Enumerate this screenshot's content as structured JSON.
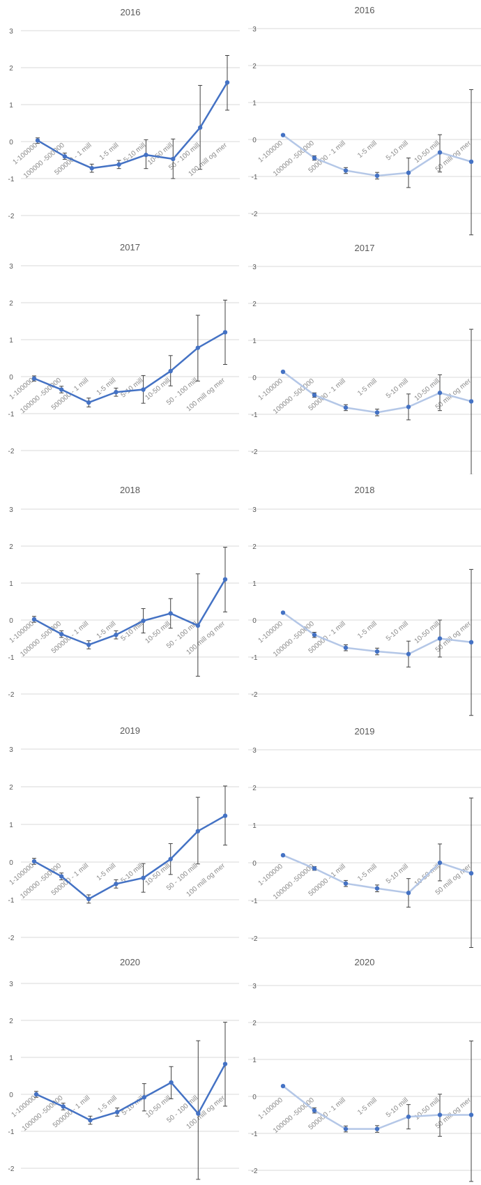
{
  "colors": {
    "dark_series": "#4472c4",
    "light_series": "#b4c7e7",
    "error_bar": "#404040",
    "grid": "#d9d9d9",
    "text": "#595959"
  },
  "chart_data": [
    {
      "type": "line",
      "title": "2016",
      "style": "dark",
      "ylim": [
        -2,
        3
      ],
      "yticks": [
        3,
        2,
        1,
        0,
        -1,
        -2
      ],
      "grid": true,
      "categories": [
        "1-100000",
        "100000 -500000",
        "500000 - 1 mill",
        "1-5 mill",
        "5-10 mill",
        "10-50 mill",
        "50 - 100 mill",
        "100 mill og mer"
      ],
      "values": [
        0.03,
        -0.4,
        -0.72,
        -0.62,
        -0.36,
        -0.47,
        0.38,
        1.6
      ],
      "err_low": [
        -0.05,
        -0.48,
        -0.83,
        -0.73,
        -0.73,
        -1.0,
        -0.75,
        0.85
      ],
      "err_high": [
        0.1,
        -0.31,
        -0.61,
        -0.51,
        0.05,
        0.07,
        1.52,
        2.33
      ]
    },
    {
      "type": "line",
      "title": "2016",
      "style": "light",
      "ylim": [
        -2.5,
        3
      ],
      "yticks": [
        3,
        2,
        1,
        0,
        -1,
        -2
      ],
      "grid": true,
      "categories": [
        "1-100000",
        "100000 -500000",
        "500000 - 1 mill",
        "1-5 mill",
        "5-10 mill",
        "10-50 mill",
        "50 mill og mer"
      ],
      "values": [
        0.12,
        -0.5,
        -0.84,
        -0.98,
        -0.9,
        -0.35,
        -0.6
      ],
      "err_low": [
        null,
        -0.56,
        -0.92,
        -1.07,
        -1.3,
        -0.88,
        -2.58
      ],
      "err_high": [
        null,
        -0.44,
        -0.76,
        -0.89,
        -0.5,
        0.13,
        1.35
      ]
    },
    {
      "type": "line",
      "title": "2017",
      "style": "dark",
      "ylim": [
        -2,
        3
      ],
      "yticks": [
        3,
        2,
        1,
        0,
        -1,
        -2
      ],
      "grid": true,
      "categories": [
        "1-100000",
        "100000 -500000",
        "500000 - 1 mill",
        "1-5 mill",
        "5-10 mill",
        "10-50 mill",
        "50 - 100 mill",
        "100 mill og mer"
      ],
      "values": [
        -0.05,
        -0.35,
        -0.7,
        -0.42,
        -0.35,
        0.15,
        0.78,
        1.2
      ],
      "err_low": [
        -0.12,
        -0.44,
        -0.82,
        -0.53,
        -0.72,
        -0.25,
        -0.12,
        0.33
      ],
      "err_high": [
        0.02,
        -0.26,
        -0.58,
        -0.31,
        0.03,
        0.57,
        1.66,
        2.07
      ]
    },
    {
      "type": "line",
      "title": "2017",
      "style": "light",
      "ylim": [
        -2.5,
        3
      ],
      "yticks": [
        3,
        2,
        1,
        0,
        -1,
        -2
      ],
      "grid": true,
      "categories": [
        "1-100000",
        "100000 -500000",
        "500000 - 1 mill",
        "1-5 mill",
        "5-10 mill",
        "10-50 mill",
        "50 mill og mer"
      ],
      "values": [
        0.15,
        -0.48,
        -0.82,
        -0.95,
        -0.8,
        -0.42,
        -0.65
      ],
      "err_low": [
        null,
        -0.54,
        -0.9,
        -1.04,
        -1.15,
        -0.9,
        -2.63
      ],
      "err_high": [
        null,
        -0.42,
        -0.74,
        -0.86,
        -0.45,
        0.07,
        1.3
      ]
    },
    {
      "type": "line",
      "title": "2018",
      "style": "dark",
      "ylim": [
        -2,
        3
      ],
      "yticks": [
        3,
        2,
        1,
        0,
        -1,
        -2
      ],
      "grid": true,
      "categories": [
        "1-100000",
        "100000 -500000",
        "500000 - 1 mill",
        "1-5 mill",
        "5-10 mill",
        "10-50 mill",
        "50 - 100 mill",
        "100 mill og mer"
      ],
      "values": [
        0.02,
        -0.38,
        -0.67,
        -0.4,
        -0.02,
        0.18,
        -0.15,
        1.1
      ],
      "err_low": [
        -0.06,
        -0.47,
        -0.78,
        -0.51,
        -0.35,
        -0.22,
        -1.52,
        0.22
      ],
      "err_high": [
        0.1,
        -0.29,
        -0.56,
        -0.29,
        0.31,
        0.58,
        1.25,
        1.97
      ]
    },
    {
      "type": "line",
      "title": "2018",
      "style": "light",
      "ylim": [
        -2.5,
        3
      ],
      "yticks": [
        3,
        2,
        1,
        0,
        -1,
        -2
      ],
      "grid": true,
      "categories": [
        "1-100000",
        "100000 -500000",
        "500000 - 1 mill",
        "1-5 mill",
        "5-10 mill",
        "10-50 mill",
        "50 mill og mer"
      ],
      "values": [
        0.2,
        -0.4,
        -0.75,
        -0.85,
        -0.92,
        -0.5,
        -0.6
      ],
      "err_low": [
        null,
        -0.47,
        -0.83,
        -0.94,
        -1.27,
        -1.0,
        -2.58
      ],
      "err_high": [
        null,
        -0.33,
        -0.67,
        -0.76,
        -0.57,
        0.0,
        1.37
      ]
    },
    {
      "type": "line",
      "title": "2019",
      "style": "dark",
      "ylim": [
        -2,
        3
      ],
      "yticks": [
        3,
        2,
        1,
        0,
        -1,
        -2
      ],
      "grid": true,
      "categories": [
        "1-100000",
        "100000 -500000",
        "500000 - 1 mill",
        "1-5 mill",
        "5-10 mill",
        "10-50 mill",
        "50 - 100 mill",
        "100 mill og mer"
      ],
      "values": [
        0.02,
        -0.38,
        -0.98,
        -0.58,
        -0.42,
        0.08,
        0.82,
        1.23
      ],
      "err_low": [
        -0.06,
        -0.47,
        -1.09,
        -0.69,
        -0.8,
        -0.33,
        -0.05,
        0.45
      ],
      "err_high": [
        0.1,
        -0.29,
        -0.87,
        -0.47,
        -0.04,
        0.49,
        1.72,
        2.02
      ]
    },
    {
      "type": "line",
      "title": "2019",
      "style": "light",
      "ylim": [
        -2.5,
        3
      ],
      "yticks": [
        3,
        2,
        1,
        0,
        -1,
        -2
      ],
      "grid": true,
      "categories": [
        "1-100000",
        "100000 -500000",
        "500000 - 1 mill",
        "1-5 mill",
        "5-10 mill",
        "10-50 mill",
        "50 mill og mer"
      ],
      "values": [
        0.2,
        -0.15,
        -0.55,
        -0.68,
        -0.8,
        0.0,
        -0.28
      ],
      "err_low": [
        null,
        -0.2,
        -0.63,
        -0.77,
        -1.18,
        -0.48,
        -2.25
      ],
      "err_high": [
        null,
        -0.1,
        -0.47,
        -0.59,
        -0.42,
        0.5,
        1.72
      ]
    },
    {
      "type": "line",
      "title": "2020",
      "style": "dark",
      "ylim": [
        -2.25,
        3
      ],
      "yticks": [
        3,
        2,
        1,
        0,
        -1,
        -2
      ],
      "grid": true,
      "categories": [
        "1-100000",
        "100000 -500000",
        "500000 - 1 mill",
        "1-5 mill",
        "5-10 mill",
        "10-50 mill",
        "50 - 100 mill",
        "100 mill og mer"
      ],
      "values": [
        0.0,
        -0.33,
        -0.7,
        -0.48,
        -0.08,
        0.32,
        -0.52,
        0.82
      ],
      "err_low": [
        -0.08,
        -0.42,
        -0.81,
        -0.59,
        -0.45,
        -0.12,
        -2.3,
        -0.32
      ],
      "err_high": [
        0.08,
        -0.24,
        -0.59,
        -0.37,
        0.29,
        0.75,
        1.45,
        1.95
      ]
    },
    {
      "type": "line",
      "title": "2020",
      "style": "light",
      "ylim": [
        -2.25,
        3
      ],
      "yticks": [
        3,
        2,
        1,
        0,
        -1,
        -2
      ],
      "grid": true,
      "categories": [
        "1-100000",
        "100000 -500000",
        "500000 - 1 mill",
        "1-5 mill",
        "5-10 mill",
        "10-50 mill",
        "50 mill og mer"
      ],
      "values": [
        0.28,
        -0.38,
        -0.88,
        -0.88,
        -0.55,
        -0.5,
        -0.5
      ],
      "err_low": [
        null,
        -0.45,
        -0.96,
        -0.97,
        -0.88,
        -1.08,
        -2.3
      ],
      "err_high": [
        null,
        -0.31,
        -0.8,
        -0.79,
        -0.22,
        0.06,
        1.5
      ]
    }
  ]
}
